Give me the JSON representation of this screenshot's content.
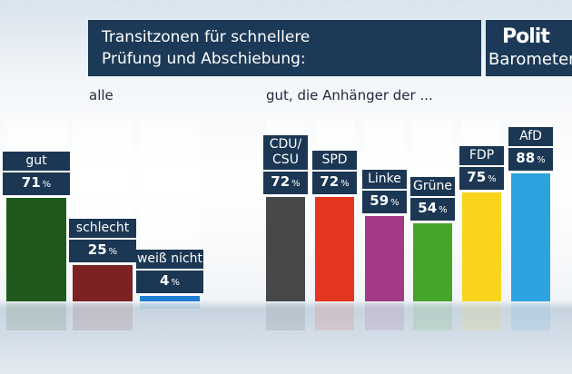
{
  "header": {
    "title_lines": [
      "Transitzonen für schnellere",
      "Prüfung und Abschiebung:"
    ],
    "logo": [
      "Polit",
      "Barometer"
    ]
  },
  "chart_data": [
    {
      "type": "bar",
      "title": "alle",
      "categories": [
        "gut",
        "schlecht",
        "weiß nicht"
      ],
      "values": [
        71,
        25,
        4
      ],
      "colors": [
        "#1f5a1c",
        "#7c2224",
        "#1f7fd6"
      ],
      "unit": "%",
      "ylim": [
        0,
        100
      ]
    },
    {
      "type": "bar",
      "title": "gut, die Anhänger der ...",
      "categories": [
        "CDU/\nCSU",
        "SPD",
        "Linke",
        "Grüne",
        "FDP",
        "AfD"
      ],
      "values": [
        72,
        72,
        59,
        54,
        75,
        88
      ],
      "colors": [
        "#484848",
        "#e6361f",
        "#a23a87",
        "#45a52b",
        "#f8d41c",
        "#2ea2df"
      ],
      "unit": "%",
      "ylim": [
        0,
        100
      ]
    }
  ]
}
